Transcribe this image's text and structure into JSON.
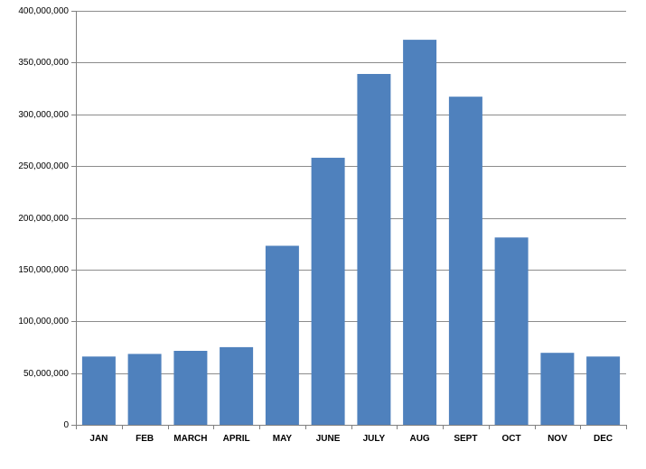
{
  "chart_data": {
    "type": "bar",
    "title": "",
    "xlabel": "",
    "ylabel": "",
    "categories": [
      "JAN",
      "FEB",
      "MARCH",
      "APRIL",
      "MAY",
      "JUNE",
      "JULY",
      "AUG",
      "SEPT",
      "OCT",
      "NOV",
      "DEC"
    ],
    "values": [
      66000000,
      68500000,
      71500000,
      75000000,
      173000000,
      258000000,
      339000000,
      372000000,
      317000000,
      181000000,
      69500000,
      66000000
    ],
    "ylim": [
      0,
      400000000
    ],
    "yticks": [
      0,
      50000000,
      100000000,
      150000000,
      200000000,
      250000000,
      300000000,
      350000000,
      400000000
    ],
    "ytick_labels": [
      "0",
      "50,000,000",
      "100,000,000",
      "150,000,000",
      "200,000,000",
      "250,000,000",
      "300,000,000",
      "350,000,000",
      "400,000,000"
    ],
    "grid": true,
    "legend": "none",
    "bar_color": "#4f81bd"
  }
}
